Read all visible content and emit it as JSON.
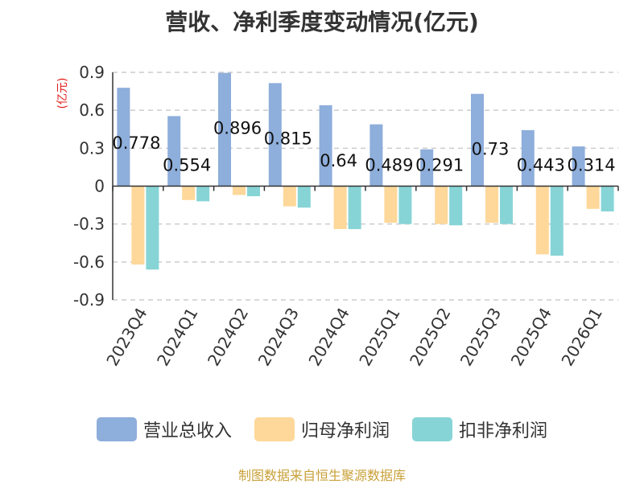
{
  "header": {
    "title": "营收、净利季度变动情况(亿元)"
  },
  "chart_data": {
    "type": "bar",
    "title": "营收、净利季度变动情况(亿元)",
    "ylabel": "(亿元)",
    "xlabel": "",
    "ylim": [
      -0.9,
      0.9
    ],
    "yticks": [
      0.9,
      0.6,
      0.3,
      0,
      -0.3,
      -0.6,
      -0.9
    ],
    "ytick_labels": [
      "0.9",
      "0.6",
      "0.3",
      "0",
      "-0.3",
      "-0.6",
      "-0.9"
    ],
    "grid": true,
    "categories": [
      "2023Q4",
      "2024Q1",
      "2024Q2",
      "2024Q3",
      "2024Q4",
      "2025Q1",
      "2025Q2",
      "2025Q3",
      "2025Q4",
      "2026Q1"
    ],
    "series": [
      {
        "name": "营业总收入",
        "color": "#8eaedb",
        "values": [
          0.778,
          0.554,
          0.896,
          0.815,
          0.64,
          0.489,
          0.291,
          0.73,
          0.443,
          0.314
        ],
        "labels": [
          "0.778",
          "0.554",
          "0.896",
          "0.815",
          "0.64",
          "0.489",
          "0.291",
          "0.73",
          "0.443",
          "0.314"
        ]
      },
      {
        "name": "归母净利润",
        "color": "#fdd89a",
        "values": [
          -0.62,
          -0.11,
          -0.07,
          -0.16,
          -0.34,
          -0.29,
          -0.3,
          -0.29,
          -0.54,
          -0.18
        ]
      },
      {
        "name": "扣非净利润",
        "color": "#87d4d6",
        "values": [
          -0.66,
          -0.12,
          -0.08,
          -0.17,
          -0.34,
          -0.3,
          -0.31,
          -0.3,
          -0.55,
          -0.2
        ]
      }
    ]
  },
  "legend": {
    "items": [
      {
        "label": "营业总收入",
        "color": "#8eaedb"
      },
      {
        "label": "归母净利润",
        "color": "#fdd89a"
      },
      {
        "label": "扣非净利润",
        "color": "#87d4d6"
      }
    ]
  },
  "footer": {
    "source": "制图数据来自恒生聚源数据库"
  }
}
